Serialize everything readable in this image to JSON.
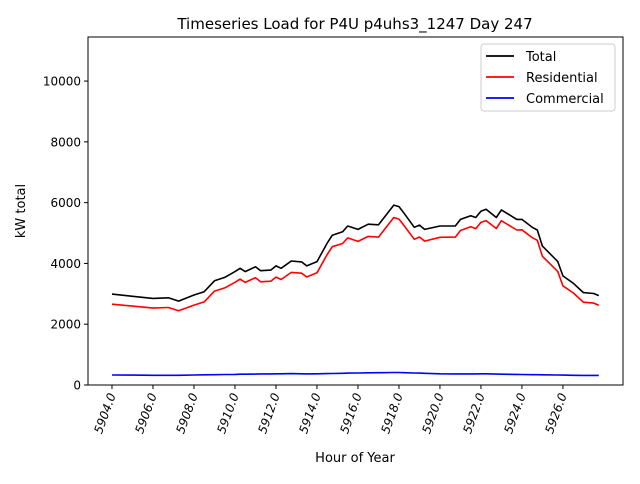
{
  "chart_data": {
    "type": "line",
    "title": "Timeseries Load for P4U p4uhs3_1247  Day 247",
    "xlabel": "Hour of Year",
    "ylabel": "kW total",
    "xlim": [
      5902.83,
      5928.93
    ],
    "ylim": [
      0,
      11450
    ],
    "xticks": [
      5904,
      5906,
      5908,
      5910,
      5912,
      5914,
      5916,
      5918,
      5920,
      5922,
      5924,
      5926
    ],
    "xtick_labels": [
      "5904.0",
      "5906.0",
      "5908.0",
      "5910.0",
      "5912.0",
      "5914.0",
      "5916.0",
      "5918.0",
      "5920.0",
      "5922.0",
      "5924.0",
      "5926.0"
    ],
    "yticks": [
      0,
      2000,
      4000,
      6000,
      8000,
      10000
    ],
    "ytick_labels": [
      "0",
      "2000",
      "4000",
      "6000",
      "8000",
      "10000"
    ],
    "grid": false,
    "legend_position": "top-right",
    "x": [
      5904,
      5905,
      5906,
      5906.75,
      5907.25,
      5908,
      5908.5,
      5909,
      5909.5,
      5910,
      5910.25,
      5910.5,
      5911,
      5911.25,
      5911.75,
      5912,
      5912.25,
      5912.75,
      5913.25,
      5913.5,
      5914,
      5914.5,
      5914.75,
      5915.25,
      5915.5,
      5916,
      5916.5,
      5917,
      5917.75,
      5918,
      5918.25,
      5918.75,
      5919,
      5919.25,
      5920,
      5920.75,
      5921,
      5921.5,
      5921.75,
      5922,
      5922.25,
      5922.75,
      5923,
      5923.75,
      5924,
      5924.5,
      5924.75,
      5925,
      5925.75,
      5926,
      5926.5,
      5927,
      5927.5,
      5927.75
    ],
    "series": [
      {
        "name": "Total",
        "color": "#000000",
        "values": [
          2990,
          2920,
          2850,
          2870,
          2760,
          2960,
          3070,
          3430,
          3540,
          3730,
          3840,
          3730,
          3890,
          3760,
          3780,
          3920,
          3840,
          4080,
          4050,
          3920,
          4060,
          4670,
          4930,
          5040,
          5230,
          5120,
          5290,
          5270,
          5920,
          5870,
          5650,
          5190,
          5260,
          5120,
          5230,
          5230,
          5450,
          5570,
          5510,
          5720,
          5780,
          5510,
          5760,
          5450,
          5450,
          5190,
          5100,
          4570,
          4060,
          3590,
          3350,
          3040,
          3010,
          2940
        ]
      },
      {
        "name": "Residential",
        "color": "#ff0000",
        "values": [
          2660,
          2595,
          2530,
          2550,
          2440,
          2630,
          2735,
          3090,
          3195,
          3380,
          3485,
          3375,
          3530,
          3395,
          3415,
          3550,
          3470,
          3705,
          3680,
          3555,
          3690,
          4295,
          4550,
          4655,
          4840,
          4725,
          4890,
          4865,
          5510,
          5460,
          5245,
          4795,
          4870,
          4735,
          4860,
          4865,
          5085,
          5205,
          5145,
          5350,
          5410,
          5150,
          5405,
          5100,
          5105,
          4850,
          4760,
          4235,
          3730,
          3265,
          3030,
          2725,
          2695,
          2625
        ]
      },
      {
        "name": "Commercial",
        "color": "#0000ff",
        "values": [
          330,
          325,
          320,
          320,
          320,
          330,
          335,
          340,
          345,
          350,
          355,
          355,
          360,
          365,
          365,
          370,
          370,
          375,
          370,
          365,
          370,
          375,
          380,
          385,
          390,
          395,
          400,
          405,
          410,
          410,
          405,
          395,
          390,
          385,
          370,
          365,
          365,
          365,
          365,
          370,
          370,
          360,
          355,
          350,
          345,
          340,
          340,
          335,
          330,
          325,
          320,
          315,
          315,
          315
        ]
      }
    ]
  }
}
